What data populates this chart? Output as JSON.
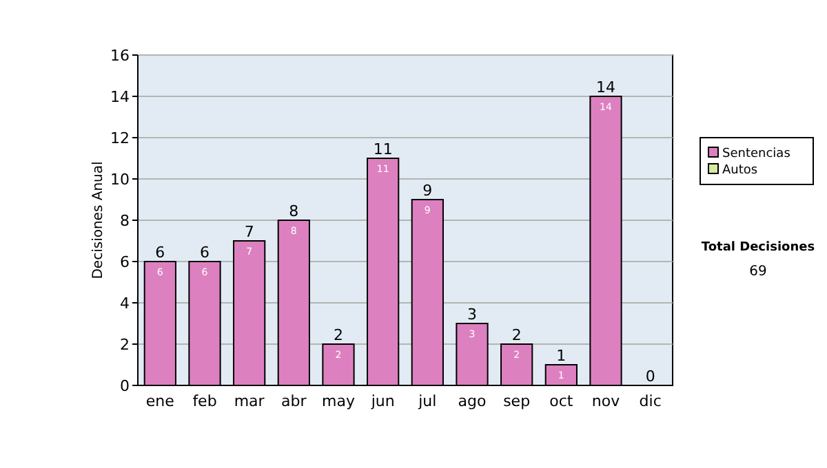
{
  "chart_data": {
    "type": "bar",
    "stacked": true,
    "ylabel": "Decisiones Anual",
    "categories": [
      "ene",
      "feb",
      "mar",
      "abr",
      "may",
      "jun",
      "jul",
      "ago",
      "sep",
      "oct",
      "nov",
      "dic"
    ],
    "series": [
      {
        "name": "Sentencias",
        "color": "#dd80c0",
        "values": [
          6,
          6,
          7,
          8,
          2,
          11,
          9,
          3,
          2,
          1,
          14,
          0
        ],
        "value_labels": [
          "6",
          "6",
          "7",
          "8",
          "2",
          "11",
          "9",
          "3",
          "2",
          "1",
          "14",
          null
        ]
      },
      {
        "name": "Autos",
        "color": "#d4eba0",
        "values": [
          0,
          0,
          0,
          0,
          0,
          0,
          0,
          0,
          0,
          0,
          0,
          0
        ]
      }
    ],
    "totals": [
      "6",
      "6",
      "7",
      "8",
      "2",
      "11",
      "9",
      "3",
      "2",
      "1",
      "14",
      "0"
    ],
    "ylim": [
      0,
      16
    ],
    "yticks": [
      0,
      2,
      4,
      6,
      8,
      10,
      12,
      14,
      16
    ],
    "grid": "y",
    "legend": "right",
    "annotations": [
      "Total Decisiones",
      "69"
    ]
  }
}
